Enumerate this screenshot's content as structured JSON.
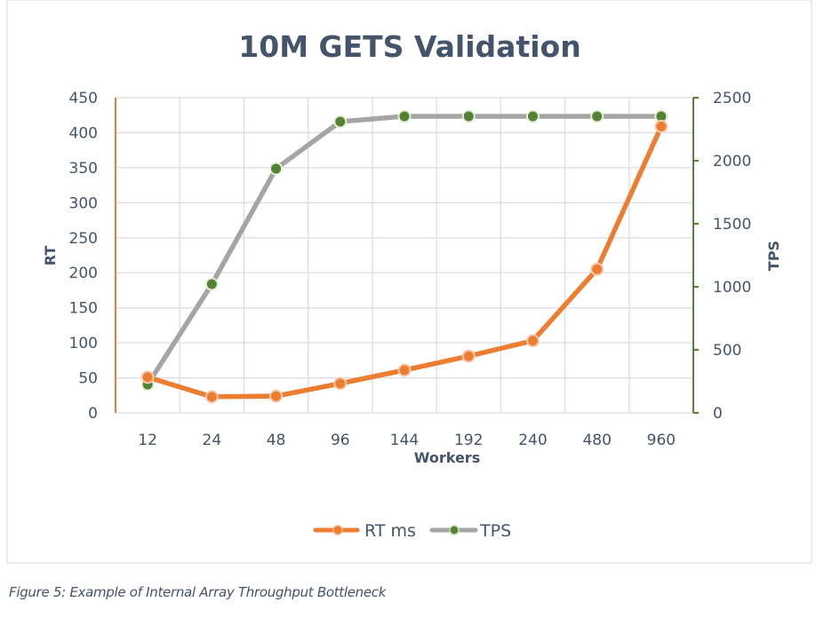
{
  "chart_data": {
    "type": "line",
    "title": "10M GETS Validation",
    "xlabel": "Workers",
    "ylabel_left": "RT",
    "ylabel_right": "TPS",
    "categories": [
      "12",
      "24",
      "48",
      "96",
      "144",
      "192",
      "240",
      "480",
      "960"
    ],
    "ylim_left": [
      0,
      450
    ],
    "yticks_left": [
      0,
      50,
      100,
      150,
      200,
      250,
      300,
      350,
      400,
      450
    ],
    "ylim_right": [
      0,
      2500
    ],
    "yticks_right": [
      0,
      500,
      1000,
      1500,
      2000,
      2500
    ],
    "grid": true,
    "legend_position": "bottom",
    "series": [
      {
        "name": "RT ms",
        "axis": "left",
        "color": "#ed7d31",
        "marker_color": "#ed7d31",
        "values": [
          51,
          23,
          24,
          42,
          61,
          81,
          103,
          205,
          409
        ]
      },
      {
        "name": "TPS",
        "axis": "right",
        "color": "#a5a5a5",
        "marker_color": "#548235",
        "values": [
          225,
          1021,
          1937,
          2310,
          2352,
          2352,
          2352,
          2352,
          2352
        ]
      }
    ],
    "colors": {
      "left_axis": "#ed7d31",
      "right_axis": "#548235",
      "title": "#44546a",
      "grid": "#d9dee8"
    }
  },
  "caption": "Figure 5: Example of Internal Array Throughput Bottleneck"
}
